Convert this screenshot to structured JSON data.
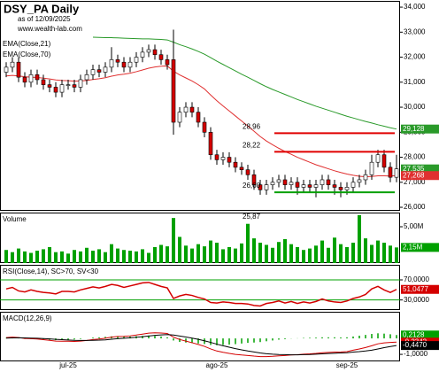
{
  "header": {
    "title": "DSY_PA Daily",
    "subtitle": "as of 12/09/2025",
    "source": "www.wealth-lab.com"
  },
  "chart_data": [
    {
      "type": "candlestick",
      "categories": [
        null,
        null,
        null,
        null,
        null,
        null,
        null,
        null,
        null,
        null,
        "jul-25",
        null,
        null,
        null,
        null,
        null,
        null,
        null,
        null,
        null,
        null,
        null,
        null,
        null,
        null,
        null,
        null,
        null,
        null,
        null,
        null,
        null,
        null,
        null,
        "ago-25",
        null,
        null,
        null,
        null,
        null,
        null,
        null,
        null,
        null,
        null,
        null,
        null,
        null,
        null,
        null,
        null,
        null,
        null,
        null,
        null,
        "sep-25",
        null,
        null,
        null,
        null,
        null,
        null,
        null,
        null
      ],
      "open": [
        31.4,
        31.6,
        31.8,
        31.2,
        31.0,
        31.3,
        31.1,
        30.9,
        30.8,
        30.6,
        30.9,
        30.9,
        30.8,
        31.1,
        31.3,
        31.5,
        31.4,
        31.6,
        31.9,
        31.8,
        31.6,
        31.8,
        32.0,
        32.2,
        32.3,
        32.1,
        31.9,
        31.9,
        29.4,
        29.8,
        30.0,
        29.8,
        29.4,
        29.0,
        28.1,
        27.9,
        28.0,
        27.8,
        27.6,
        27.5,
        27.3,
        26.9,
        26.7,
        26.9,
        27.0,
        27.1,
        26.9,
        27.0,
        26.8,
        26.9,
        26.8,
        26.9,
        27.1,
        26.9,
        26.8,
        26.7,
        26.8,
        27.0,
        27.1,
        27.3,
        27.8,
        28.1,
        27.6,
        27.2
      ],
      "high": [
        31.8,
        32.0,
        32.0,
        31.4,
        31.5,
        31.5,
        31.3,
        31.1,
        31.0,
        31.1,
        31.1,
        31.1,
        31.3,
        31.5,
        31.7,
        31.7,
        31.8,
        32.4,
        32.1,
        32.0,
        32.0,
        32.2,
        32.4,
        32.5,
        32.5,
        32.3,
        32.1,
        33.1,
        30.0,
        30.2,
        30.2,
        30.0,
        29.6,
        29.2,
        28.3,
        28.2,
        28.2,
        28.0,
        27.8,
        27.7,
        27.5,
        27.1,
        27.1,
        27.2,
        27.3,
        27.3,
        27.2,
        27.2,
        27.1,
        27.1,
        27.1,
        27.3,
        27.3,
        27.1,
        27.0,
        27.0,
        27.2,
        27.3,
        27.5,
        28.1,
        28.3,
        28.3,
        27.8,
        28.1
      ],
      "low": [
        31.2,
        31.4,
        31.0,
        30.8,
        30.8,
        30.9,
        30.7,
        30.6,
        30.4,
        30.4,
        30.7,
        30.6,
        30.6,
        30.9,
        31.1,
        31.2,
        31.2,
        31.4,
        31.6,
        31.4,
        31.4,
        31.6,
        31.8,
        32.0,
        31.9,
        31.7,
        31.5,
        28.9,
        29.2,
        29.6,
        29.6,
        29.2,
        28.8,
        27.9,
        27.7,
        27.7,
        27.6,
        27.4,
        27.3,
        27.1,
        26.7,
        26.5,
        26.5,
        26.7,
        26.8,
        26.7,
        26.7,
        26.5,
        26.6,
        26.6,
        26.4,
        26.7,
        26.7,
        26.5,
        26.4,
        26.5,
        26.6,
        26.8,
        26.9,
        27.1,
        27.6,
        27.4,
        27.0,
        27.0
      ],
      "close": [
        31.6,
        31.8,
        31.2,
        31.0,
        31.3,
        31.1,
        30.9,
        30.8,
        30.6,
        30.9,
        30.9,
        30.8,
        31.1,
        31.3,
        31.5,
        31.4,
        31.6,
        31.9,
        31.8,
        31.6,
        31.8,
        32.0,
        32.2,
        32.3,
        32.1,
        31.9,
        31.7,
        29.4,
        29.8,
        30.0,
        29.8,
        29.4,
        29.0,
        28.1,
        27.9,
        28.0,
        27.8,
        27.6,
        27.5,
        27.3,
        26.9,
        26.7,
        26.9,
        27.0,
        27.1,
        26.9,
        27.0,
        26.8,
        26.9,
        26.8,
        26.9,
        27.1,
        26.9,
        26.8,
        26.7,
        26.8,
        27.0,
        27.1,
        27.3,
        27.8,
        28.1,
        27.6,
        27.2,
        27.535
      ],
      "up_color": "#00a000",
      "down_color": "#d40000",
      "series": [
        {
          "name": "EMA(Close,21)",
          "color": "#e03030",
          "values": [
            31.25,
            31.27,
            31.25,
            31.22,
            31.2,
            31.19,
            31.16,
            31.13,
            31.09,
            31.07,
            31.06,
            31.04,
            31.05,
            31.07,
            31.11,
            31.14,
            31.18,
            31.24,
            31.29,
            31.32,
            31.36,
            31.42,
            31.49,
            31.56,
            31.61,
            31.64,
            31.65,
            31.44,
            31.29,
            31.17,
            31.05,
            30.9,
            30.73,
            30.49,
            30.26,
            30.05,
            29.85,
            29.65,
            29.45,
            29.25,
            29.04,
            28.83,
            28.65,
            28.5,
            28.36,
            28.23,
            28.12,
            28.0,
            27.9,
            27.8,
            27.7,
            27.62,
            27.54,
            27.46,
            27.39,
            27.33,
            27.28,
            27.24,
            27.22,
            27.23,
            27.26,
            27.26,
            27.25,
            27.268
          ]
        },
        {
          "name": "EMA(Close,70)",
          "color": "#2a9a2a",
          "values": [
            null,
            null,
            null,
            null,
            null,
            null,
            null,
            null,
            null,
            null,
            null,
            null,
            null,
            null,
            32.8,
            32.79,
            32.78,
            32.78,
            32.77,
            32.76,
            32.75,
            32.74,
            32.73,
            32.73,
            32.72,
            32.71,
            32.69,
            32.6,
            32.5,
            32.42,
            32.33,
            32.23,
            32.12,
            31.98,
            31.84,
            31.71,
            31.58,
            31.45,
            31.32,
            31.2,
            31.07,
            30.94,
            30.82,
            30.71,
            30.61,
            30.51,
            30.41,
            30.31,
            30.22,
            30.13,
            30.04,
            29.96,
            29.88,
            29.8,
            29.72,
            29.64,
            29.57,
            29.5,
            29.43,
            29.37,
            29.3,
            29.24,
            29.18,
            29.128
          ]
        }
      ],
      "ylim": [
        25.86,
        34.25
      ],
      "yticks": [
        {
          "value": 26,
          "label": "26,000"
        },
        {
          "value": 27,
          "label": "27,000"
        },
        {
          "value": 28,
          "label": "28,000"
        },
        {
          "value": 29,
          "label": "29,000"
        },
        {
          "value": 30,
          "label": "30,000"
        },
        {
          "value": 31,
          "label": "31,000"
        },
        {
          "value": 32,
          "label": "32,000"
        },
        {
          "value": 33,
          "label": "33,000"
        },
        {
          "value": 34,
          "label": "34,000"
        }
      ],
      "levels": [
        {
          "value": 28.96,
          "label": "28,96",
          "color": "#e00000"
        },
        {
          "value": 28.22,
          "label": "28,22",
          "color": "#e00000"
        },
        {
          "value": 26.6,
          "label": "26,60",
          "color": "#00a000"
        }
      ],
      "low_annotation": {
        "value": 25.87,
        "label": "25,87"
      },
      "last_labels": [
        {
          "value": 29.128,
          "label": "29,128",
          "color": "#2a9a2a"
        },
        {
          "value": 27.535,
          "label": "27,535",
          "color": "#2a9a2a"
        },
        {
          "value": 27.268,
          "label": "27,268",
          "color": "#e03030"
        }
      ]
    },
    {
      "type": "bar",
      "title": "Volume",
      "color": "#00a000",
      "values": [
        1800000,
        1500000,
        2000000,
        1600000,
        1400000,
        1700000,
        1900000,
        2200000,
        1500000,
        1600000,
        1300000,
        1800000,
        1600000,
        2100000,
        1700000,
        1900000,
        1500000,
        2600000,
        2000000,
        1800000,
        1700000,
        1600000,
        1900000,
        1400000,
        2200000,
        2500000,
        2300000,
        6200000,
        3600000,
        2400000,
        2000000,
        2600000,
        2300000,
        3100000,
        2800000,
        1900000,
        2200000,
        2000000,
        2700000,
        5400000,
        3400000,
        2800000,
        2500000,
        2100000,
        2900000,
        3300000,
        2600000,
        2200000,
        1800000,
        2000000,
        2400000,
        3100000,
        2100000,
        3500000,
        2600000,
        2200000,
        2800000,
        6600000,
        3400000,
        2500000,
        3100000,
        2800000,
        2400000,
        2150000
      ],
      "ylim": [
        0,
        6950000
      ],
      "yticks": [
        {
          "value": 5000000,
          "label": "5,00M"
        }
      ],
      "last_labels": [
        {
          "value": 2150000,
          "label": "2,15M",
          "color": "#00a000"
        }
      ]
    },
    {
      "type": "line",
      "title": "RSI(Close,14), SC>70, SV<30",
      "color": "#d40000",
      "band_color": "#00a000",
      "values": [
        52,
        55,
        48,
        46,
        50,
        47,
        45,
        44,
        42,
        47,
        47,
        46,
        50,
        53,
        56,
        54,
        57,
        61,
        59,
        55,
        58,
        61,
        64,
        65,
        61,
        57,
        54,
        33,
        38,
        41,
        39,
        35,
        32,
        25,
        24,
        26,
        25,
        23,
        23,
        22,
        19,
        18,
        23,
        25,
        28,
        24,
        27,
        23,
        26,
        24,
        27,
        32,
        28,
        26,
        25,
        28,
        33,
        36,
        41,
        52,
        57,
        50,
        45,
        51.0477
      ],
      "ylim": [
        10,
        100
      ],
      "yticks": [
        {
          "value": 70,
          "label": "70,0000"
        },
        {
          "value": 30,
          "label": "30,0000"
        }
      ],
      "last_labels": [
        {
          "value": 51.0477,
          "label": "51,0477",
          "color": "#d40000"
        }
      ]
    },
    {
      "type": "macd",
      "title": "MACD(12,26,9)",
      "histogram_color": "#00a000",
      "series": [
        {
          "color": "#d40000",
          "values": [
            0.05,
            0.08,
            0.05,
            0.0,
            -0.02,
            -0.04,
            -0.08,
            -0.12,
            -0.17,
            -0.18,
            -0.18,
            -0.19,
            -0.17,
            -0.13,
            -0.07,
            -0.04,
            0.01,
            0.08,
            0.12,
            0.13,
            0.16,
            0.21,
            0.27,
            0.33,
            0.35,
            0.34,
            0.31,
            0.08,
            -0.07,
            -0.17,
            -0.27,
            -0.38,
            -0.5,
            -0.66,
            -0.79,
            -0.87,
            -0.94,
            -1.0,
            -1.04,
            -1.07,
            -1.11,
            -1.14,
            -1.14,
            -1.12,
            -1.09,
            -1.07,
            -1.04,
            -1.02,
            -0.99,
            -0.97,
            -0.94,
            -0.9,
            -0.88,
            -0.86,
            -0.85,
            -0.83,
            -0.74,
            -0.66,
            -0.57,
            -0.46,
            -0.34,
            -0.28,
            -0.25,
            -0.2342
          ]
        },
        {
          "color": "#000000",
          "values": [
            0.02,
            0.03,
            0.04,
            0.03,
            0.02,
            0.01,
            -0.01,
            -0.03,
            -0.06,
            -0.08,
            -0.1,
            -0.12,
            -0.13,
            -0.13,
            -0.12,
            -0.11,
            -0.09,
            -0.05,
            -0.02,
            0.01,
            0.04,
            0.07,
            0.11,
            0.15,
            0.19,
            0.22,
            0.24,
            0.21,
            0.15,
            0.09,
            0.02,
            -0.06,
            -0.15,
            -0.25,
            -0.36,
            -0.46,
            -0.55,
            -0.64,
            -0.72,
            -0.79,
            -0.85,
            -0.91,
            -0.96,
            -0.99,
            -1.01,
            -1.02,
            -1.03,
            -1.03,
            -1.02,
            -1.01,
            -0.99,
            -0.97,
            -0.95,
            -0.93,
            -0.91,
            -0.9,
            -0.86,
            -0.83,
            -0.79,
            -0.74,
            -0.66,
            -0.58,
            -0.51,
            -0.447
          ]
        }
      ],
      "ylim": [
        -1.44,
        1.67
      ],
      "yticks": [
        {
          "value": -1,
          "label": "-1,0000"
        }
      ],
      "last_labels": [
        {
          "value": 0.2128,
          "label": "0,2128",
          "color": "#00a000"
        },
        {
          "value": -0.2342,
          "label": "-0,2342",
          "color": "#d40000"
        },
        {
          "value": -0.447,
          "label": "-0,4470",
          "color": "#000000"
        }
      ]
    }
  ]
}
